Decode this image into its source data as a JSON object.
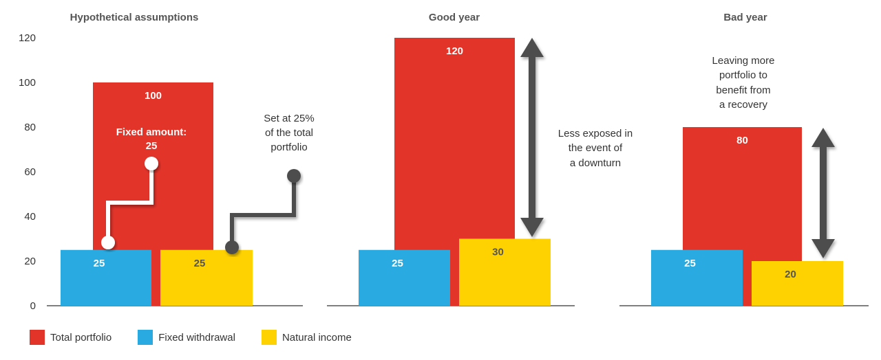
{
  "colors": {
    "total_portfolio": "#e3342a",
    "fixed_withdrawal": "#29abe2",
    "natural_income": "#fed100",
    "arrow": "#4d4d4d",
    "axis": "#333333"
  },
  "chart_data": {
    "type": "bar",
    "ylim": [
      0,
      120
    ],
    "yticks": [
      0,
      20,
      40,
      60,
      80,
      100,
      120
    ],
    "grid": false,
    "legend_position": "bottom-left",
    "series_names": [
      "Total portfolio",
      "Fixed withdrawal",
      "Natural income"
    ],
    "panels": [
      {
        "title": "Hypothetical assumptions",
        "values": {
          "total_portfolio": 100,
          "fixed_withdrawal": 25,
          "natural_income": 25
        },
        "labels": {
          "total_portfolio": "100",
          "fixed_withdrawal": "25",
          "natural_income": "25"
        }
      },
      {
        "title": "Good year",
        "values": {
          "total_portfolio": 120,
          "fixed_withdrawal": 25,
          "natural_income": 30
        },
        "labels": {
          "total_portfolio": "120",
          "fixed_withdrawal": "25",
          "natural_income": "30"
        }
      },
      {
        "title": "Bad year",
        "values": {
          "total_portfolio": 80,
          "fixed_withdrawal": 25,
          "natural_income": 20
        },
        "labels": {
          "total_portfolio": "80",
          "fixed_withdrawal": "25",
          "natural_income": "20"
        }
      }
    ],
    "annotations": {
      "fixed_amount": [
        "Fixed amount:",
        "25"
      ],
      "set_at": [
        "Set at 25%",
        "of the total",
        "portfolio"
      ],
      "less_exposed": [
        "Less exposed in",
        "the event of",
        "a downturn"
      ],
      "leaving_more": [
        "Leaving more",
        "portfolio to",
        "benefit from",
        "a recovery"
      ]
    }
  },
  "legend": [
    {
      "label": "Total portfolio",
      "color": "#e3342a"
    },
    {
      "label": "Fixed withdrawal",
      "color": "#29abe2"
    },
    {
      "label": "Natural income",
      "color": "#fed100"
    }
  ]
}
